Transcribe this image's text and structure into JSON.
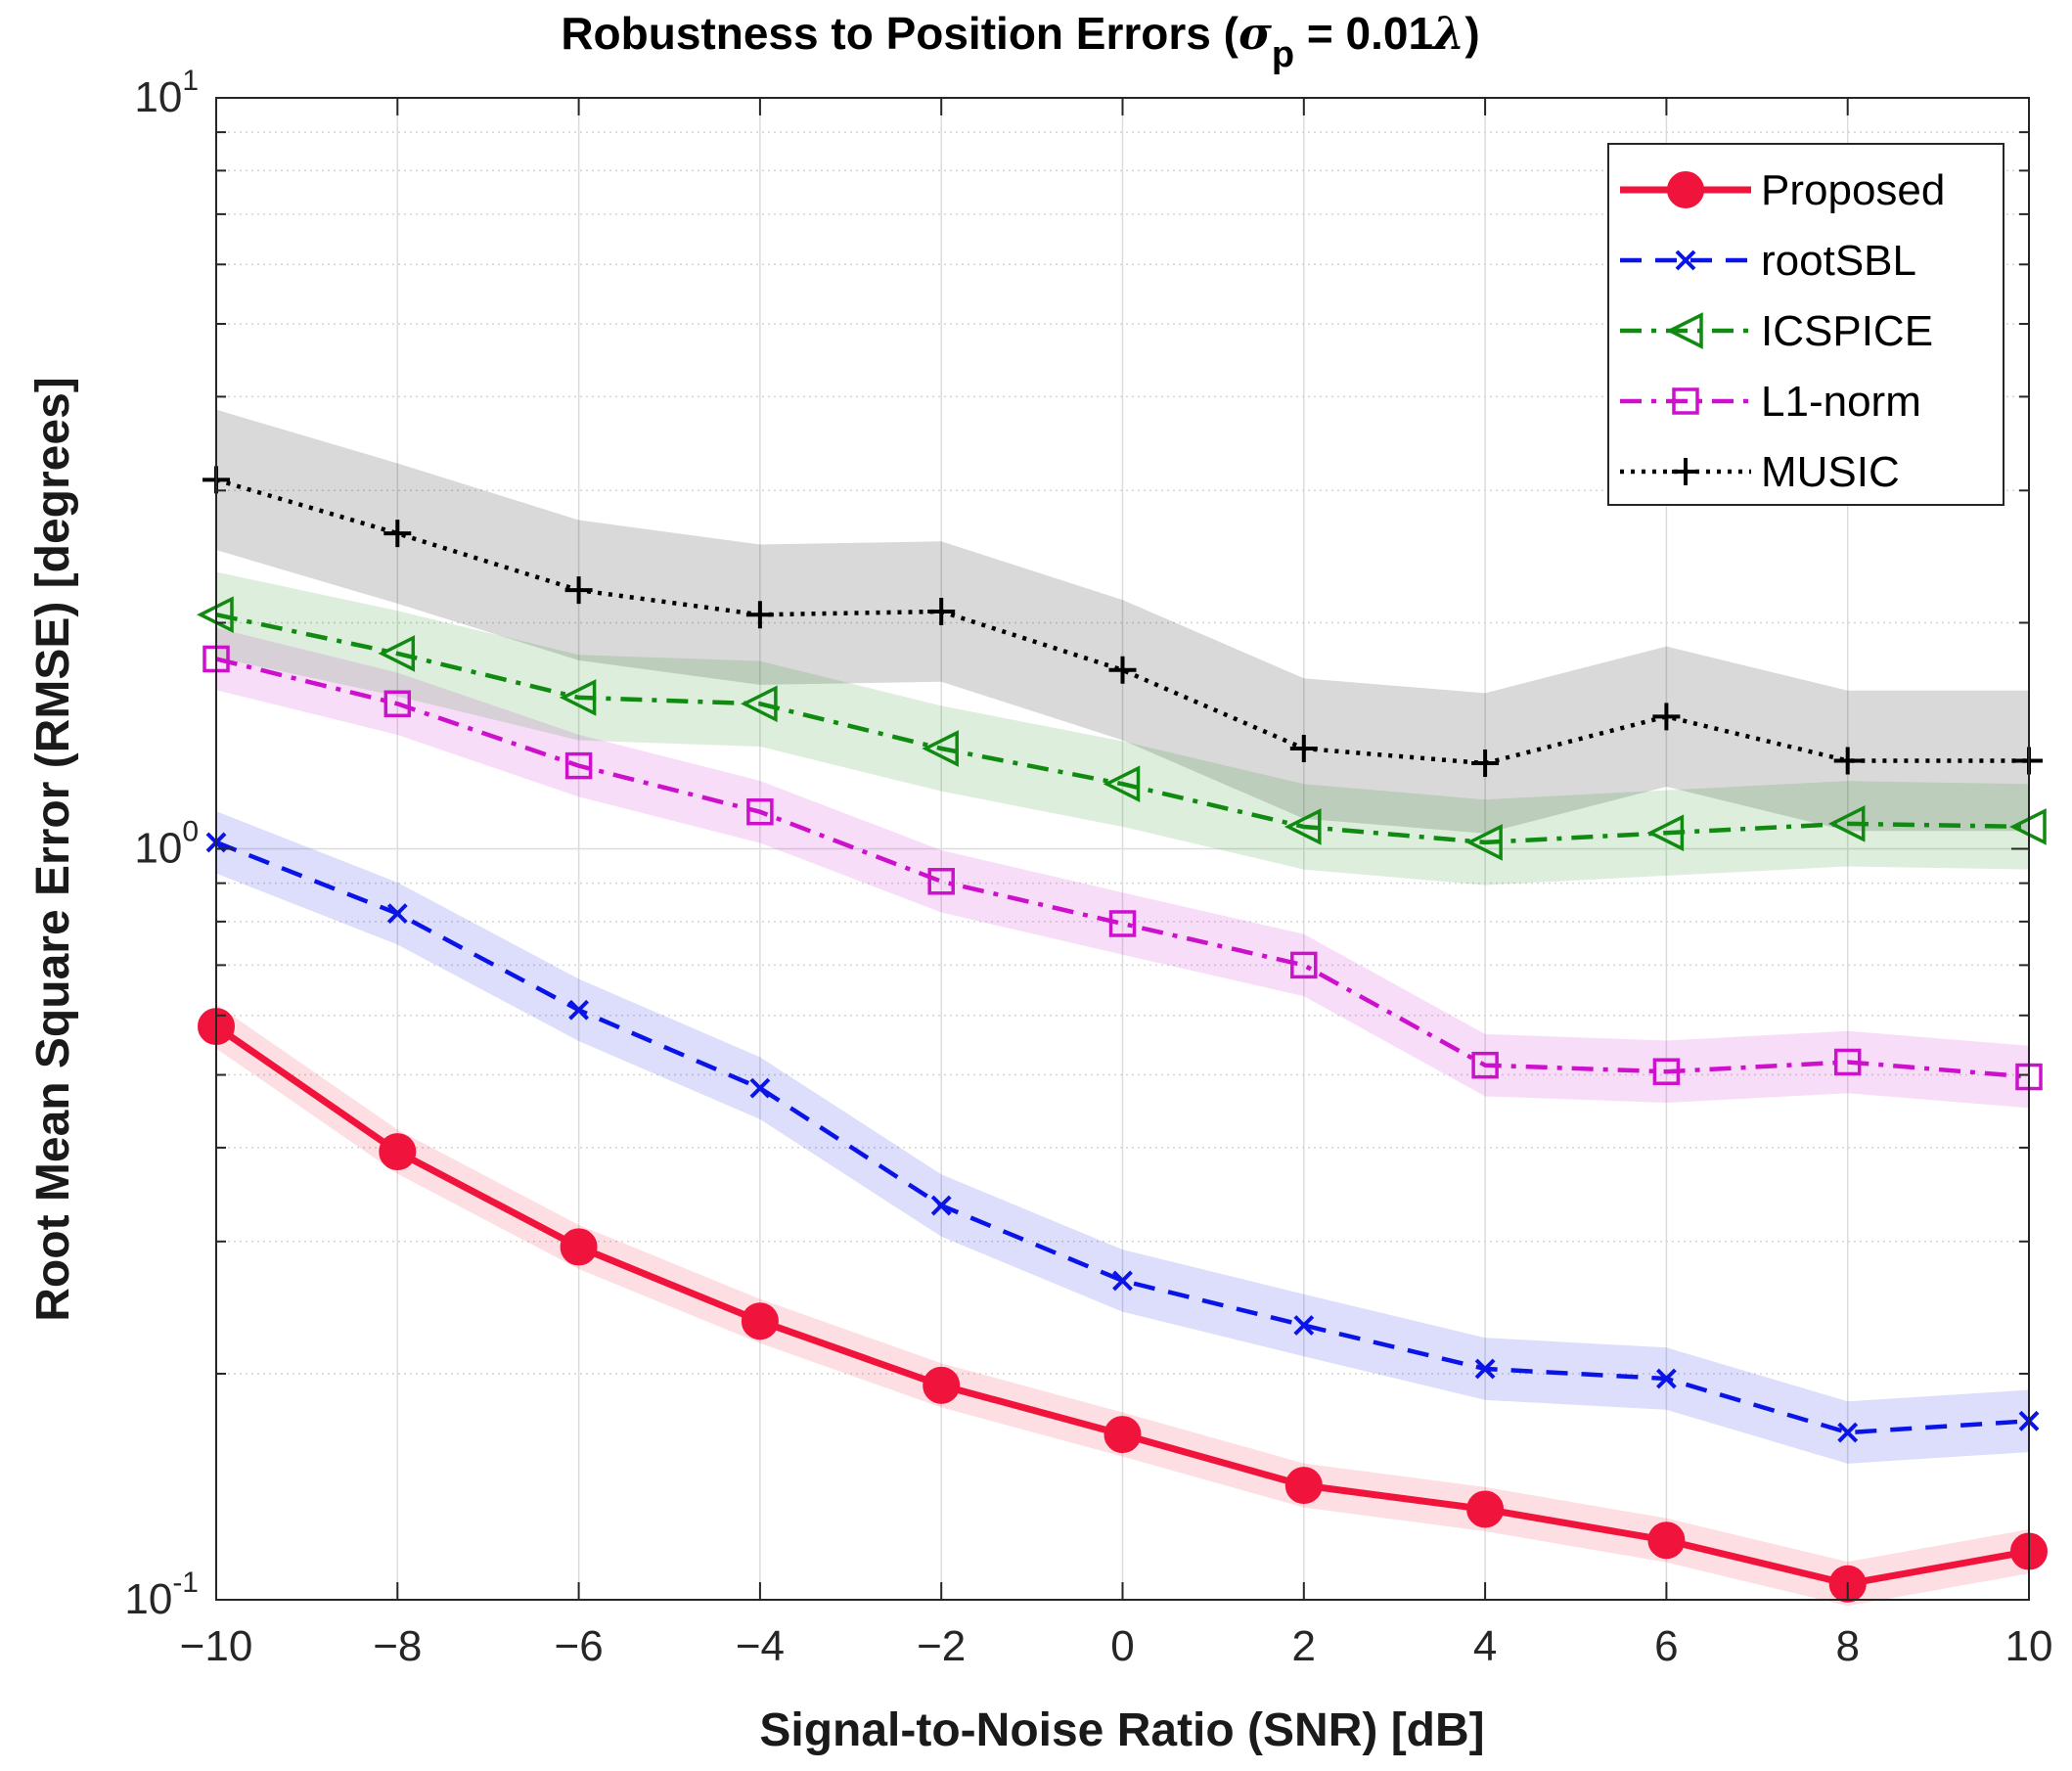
{
  "chart_data": {
    "type": "line",
    "title_main": "Robustness to Position Errors (",
    "title_sigma": "σ",
    "title_sub": "p",
    "title_value": " = 0.01",
    "title_lambda": "λ",
    "title_close": ")",
    "xlabel": "Signal-to-Noise Ratio (SNR) [dB]",
    "ylabel": "Root Mean Square Error (RMSE) [degrees]",
    "yscale": "log",
    "xlim": [
      -10,
      10
    ],
    "ylim": [
      0.1,
      10
    ],
    "grid": true,
    "legend_position": "top-right",
    "x": [
      -10,
      -8,
      -6,
      -4,
      -2,
      0,
      2,
      4,
      6,
      8,
      10
    ],
    "x_tick_labels": [
      "−10",
      "−8",
      "−6",
      "−4",
      "−2",
      "0",
      "2",
      "4",
      "6",
      "8",
      "10"
    ],
    "y_tick_labels": [
      {
        "base": "10",
        "exp": "-1",
        "value": 0.1
      },
      {
        "base": "10",
        "exp": "0",
        "value": 1
      },
      {
        "base": "10",
        "exp": "1",
        "value": 10
      }
    ],
    "series": [
      {
        "name": "Proposed",
        "key": "proposed",
        "color": "#f0143c",
        "marker": "filled-circle",
        "line_style": "solid",
        "values": [
          0.58,
          0.395,
          0.295,
          0.235,
          0.193,
          0.166,
          0.142,
          0.132,
          0.12,
          0.105,
          0.116
        ],
        "band_factor": 1.07
      },
      {
        "name": "rootSBL",
        "key": "rootsbl",
        "color": "#0a14e6",
        "marker": "x",
        "line_style": "dashed",
        "values": [
          1.02,
          0.82,
          0.61,
          0.48,
          0.335,
          0.266,
          0.232,
          0.203,
          0.197,
          0.167,
          0.173
        ],
        "band_factor": 1.1
      },
      {
        "name": "ICSPICE",
        "key": "icspice",
        "color": "#108a10",
        "marker": "triangle-left",
        "line_style": "dashdot",
        "values": [
          2.05,
          1.82,
          1.59,
          1.56,
          1.36,
          1.22,
          1.07,
          1.02,
          1.05,
          1.08,
          1.07
        ],
        "band_factor": 1.14
      },
      {
        "name": "L1-norm",
        "key": "l1norm",
        "color": "#cc10cc",
        "marker": "square",
        "line_style": "dashdot",
        "values": [
          1.79,
          1.56,
          1.29,
          1.12,
          0.905,
          0.795,
          0.7,
          0.515,
          0.505,
          0.52,
          0.497
        ],
        "band_factor": 1.1
      },
      {
        "name": "MUSIC",
        "key": "music",
        "color": "#000000",
        "marker": "plus",
        "line_style": "dotted",
        "values": [
          3.1,
          2.63,
          2.21,
          2.05,
          2.07,
          1.73,
          1.36,
          1.3,
          1.5,
          1.31,
          1.31
        ],
        "band_factor": 1.24
      }
    ]
  }
}
